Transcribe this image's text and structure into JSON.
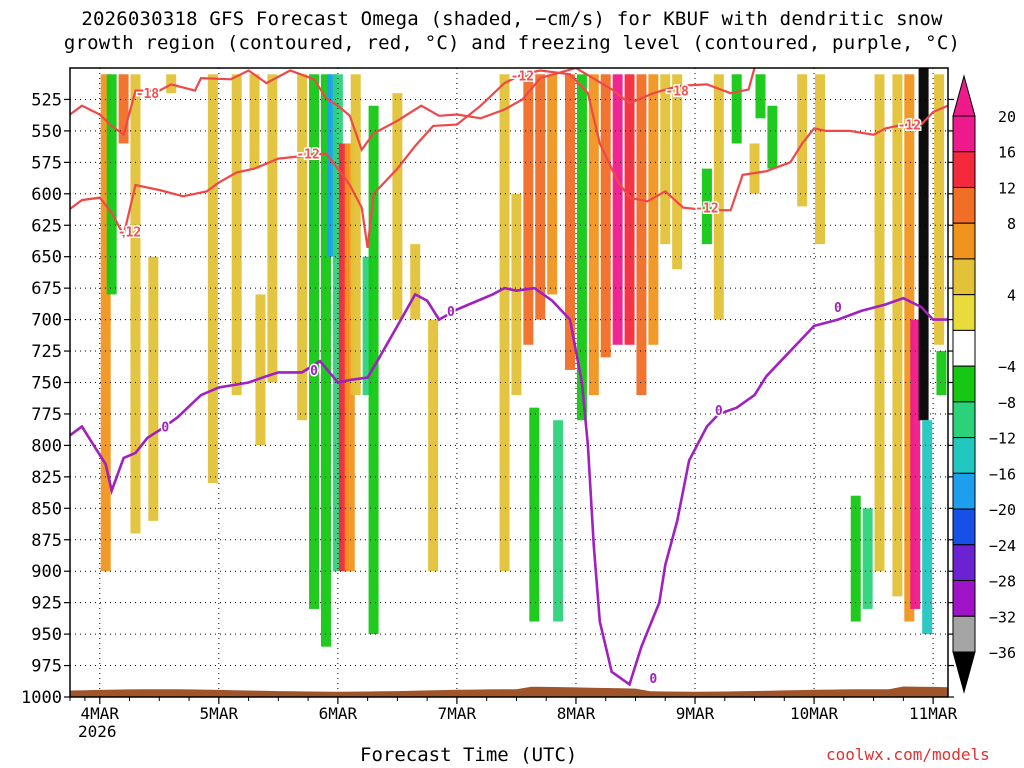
{
  "title": {
    "line1": "2026030318 GFS Forecast Omega (shaded, −cm/s) for KBUF with dendritic snow",
    "line2": "growth region (contoured, red, °C) and freezing level (contoured, purple, °C)"
  },
  "xlabel": "Forecast Time (UTC)",
  "year_label": "2026",
  "credit": "coolwx.com/models",
  "chart_data": {
    "type": "heatmap",
    "x": {
      "unit": "UTC day",
      "tick_labels": [
        "4MAR",
        "5MAR",
        "6MAR",
        "7MAR",
        "8MAR",
        "9MAR",
        "10MAR",
        "11MAR"
      ],
      "range_days": [
        3.75,
        11.125
      ]
    },
    "y": {
      "unit": "hPa",
      "tick_labels": [
        "525",
        "550",
        "575",
        "600",
        "625",
        "650",
        "675",
        "700",
        "725",
        "750",
        "775",
        "800",
        "825",
        "850",
        "875",
        "900",
        "925",
        "950",
        "975",
        "1000"
      ],
      "range": [
        500,
        1000
      ],
      "inverted": true,
      "grid": true
    },
    "colorbar": {
      "labels": [
        "20",
        "16",
        "12",
        "8",
        "4",
        "−4",
        "−8",
        "−12",
        "−16",
        "−20",
        "−24",
        "−28",
        "−32",
        "−36"
      ],
      "bins": [
        {
          "min": 20,
          "max": 24,
          "color": "#ee1a8c"
        },
        {
          "min": 16,
          "max": 20,
          "color": "#f42a3c"
        },
        {
          "min": 12,
          "max": 16,
          "color": "#f06e26"
        },
        {
          "min": 8,
          "max": 12,
          "color": "#f0941e"
        },
        {
          "min": 4,
          "max": 8,
          "color": "#e3c238"
        },
        {
          "min": 0,
          "max": 4,
          "color": "#e8dc3c"
        },
        {
          "min": -4,
          "max": 4,
          "color": "#ffffff"
        },
        {
          "min": -8,
          "max": -4,
          "color": "#14c814"
        },
        {
          "min": -12,
          "max": -8,
          "color": "#2cd27a"
        },
        {
          "min": -16,
          "max": -12,
          "color": "#20c8c0"
        },
        {
          "min": -20,
          "max": -16,
          "color": "#1ca0ee"
        },
        {
          "min": -24,
          "max": -20,
          "color": "#1650e6"
        },
        {
          "min": -28,
          "max": -24,
          "color": "#6a22d2"
        },
        {
          "min": -32,
          "max": -28,
          "color": "#a014c8"
        },
        {
          "min": -36,
          "max": -32,
          "color": "#a5a5a5"
        }
      ],
      "top_triangle_color": "#ee1a8c",
      "bottom_triangle_color": "#000000"
    },
    "omega_shading": [
      {
        "day": 4.05,
        "pmin": 505,
        "pmax": 900,
        "value": 10
      },
      {
        "day": 4.1,
        "pmin": 505,
        "pmax": 680,
        "value": -6
      },
      {
        "day": 4.2,
        "pmin": 505,
        "pmax": 560,
        "value": 14
      },
      {
        "day": 4.3,
        "pmin": 505,
        "pmax": 870,
        "value": 6
      },
      {
        "day": 4.45,
        "pmin": 650,
        "pmax": 860,
        "value": 5
      },
      {
        "day": 4.6,
        "pmin": 505,
        "pmax": 520,
        "value": 6
      },
      {
        "day": 4.95,
        "pmin": 505,
        "pmax": 830,
        "value": 6
      },
      {
        "day": 5.15,
        "pmin": 505,
        "pmax": 760,
        "value": 5
      },
      {
        "day": 5.3,
        "pmin": 505,
        "pmax": 580,
        "value": 5
      },
      {
        "day": 5.35,
        "pmin": 680,
        "pmax": 800,
        "value": 6
      },
      {
        "day": 5.45,
        "pmin": 505,
        "pmax": 750,
        "value": 6
      },
      {
        "day": 5.7,
        "pmin": 505,
        "pmax": 780,
        "value": 6
      },
      {
        "day": 5.8,
        "pmin": 505,
        "pmax": 930,
        "value": -6
      },
      {
        "day": 5.9,
        "pmin": 505,
        "pmax": 960,
        "value": -6
      },
      {
        "day": 5.95,
        "pmin": 505,
        "pmax": 650,
        "value": -20
      },
      {
        "day": 6.0,
        "pmin": 505,
        "pmax": 900,
        "value": -12
      },
      {
        "day": 6.05,
        "pmin": 560,
        "pmax": 900,
        "value": 18
      },
      {
        "day": 6.1,
        "pmin": 560,
        "pmax": 900,
        "value": 8
      },
      {
        "day": 6.15,
        "pmin": 505,
        "pmax": 760,
        "value": 6
      },
      {
        "day": 6.25,
        "pmin": 650,
        "pmax": 760,
        "value": -10
      },
      {
        "day": 6.3,
        "pmin": 530,
        "pmax": 950,
        "value": -6
      },
      {
        "day": 6.5,
        "pmin": 520,
        "pmax": 700,
        "value": 5
      },
      {
        "day": 6.65,
        "pmin": 640,
        "pmax": 700,
        "value": 5
      },
      {
        "day": 6.8,
        "pmin": 700,
        "pmax": 900,
        "value": 5
      },
      {
        "day": 7.4,
        "pmin": 505,
        "pmax": 900,
        "value": 6
      },
      {
        "day": 7.5,
        "pmin": 600,
        "pmax": 760,
        "value": 6
      },
      {
        "day": 7.6,
        "pmin": 505,
        "pmax": 720,
        "value": 14
      },
      {
        "day": 7.65,
        "pmin": 770,
        "pmax": 940,
        "value": -8
      },
      {
        "day": 7.7,
        "pmin": 505,
        "pmax": 700,
        "value": 12
      },
      {
        "day": 7.8,
        "pmin": 505,
        "pmax": 680,
        "value": 10
      },
      {
        "day": 7.85,
        "pmin": 780,
        "pmax": 940,
        "value": -12
      },
      {
        "day": 7.95,
        "pmin": 505,
        "pmax": 740,
        "value": 12
      },
      {
        "day": 8.05,
        "pmin": 505,
        "pmax": 780,
        "value": -8
      },
      {
        "day": 8.15,
        "pmin": 505,
        "pmax": 760,
        "value": 8
      },
      {
        "day": 8.25,
        "pmin": 505,
        "pmax": 730,
        "value": 14
      },
      {
        "day": 8.35,
        "pmin": 505,
        "pmax": 720,
        "value": 20
      },
      {
        "day": 8.45,
        "pmin": 505,
        "pmax": 720,
        "value": 18
      },
      {
        "day": 8.55,
        "pmin": 505,
        "pmax": 760,
        "value": 12
      },
      {
        "day": 8.65,
        "pmin": 505,
        "pmax": 720,
        "value": 8
      },
      {
        "day": 8.75,
        "pmin": 505,
        "pmax": 640,
        "value": 6
      },
      {
        "day": 8.85,
        "pmin": 505,
        "pmax": 660,
        "value": 5
      },
      {
        "day": 9.1,
        "pmin": 580,
        "pmax": 640,
        "value": -8
      },
      {
        "day": 9.2,
        "pmin": 505,
        "pmax": 700,
        "value": 5
      },
      {
        "day": 9.35,
        "pmin": 505,
        "pmax": 560,
        "value": -8
      },
      {
        "day": 9.5,
        "pmin": 560,
        "pmax": 600,
        "value": 5
      },
      {
        "day": 9.55,
        "pmin": 505,
        "pmax": 540,
        "value": -8
      },
      {
        "day": 9.65,
        "pmin": 530,
        "pmax": 580,
        "value": -8
      },
      {
        "day": 9.9,
        "pmin": 505,
        "pmax": 610,
        "value": 5
      },
      {
        "day": 10.05,
        "pmin": 505,
        "pmax": 640,
        "value": 5
      },
      {
        "day": 10.35,
        "pmin": 840,
        "pmax": 940,
        "value": -8
      },
      {
        "day": 10.45,
        "pmin": 850,
        "pmax": 930,
        "value": -12
      },
      {
        "day": 10.55,
        "pmin": 505,
        "pmax": 900,
        "value": 5
      },
      {
        "day": 10.7,
        "pmin": 505,
        "pmax": 920,
        "value": 6
      },
      {
        "day": 10.8,
        "pmin": 505,
        "pmax": 940,
        "value": 10
      },
      {
        "day": 10.85,
        "pmin": 700,
        "pmax": 930,
        "value": 20
      },
      {
        "day": 10.92,
        "pmin": 500,
        "pmax": 780,
        "value": -40
      },
      {
        "day": 10.95,
        "pmin": 780,
        "pmax": 950,
        "value": -14
      },
      {
        "day": 11.05,
        "pmin": 505,
        "pmax": 720,
        "value": 6
      },
      {
        "day": 11.07,
        "pmin": 725,
        "pmax": 760,
        "value": -8
      }
    ],
    "dgz_contours_red": [
      {
        "label": "-18",
        "points": [
          [
            3.75,
            537
          ],
          [
            3.85,
            530
          ],
          [
            4.0,
            537
          ],
          [
            4.1,
            546
          ],
          [
            4.2,
            553
          ],
          [
            4.3,
            518
          ],
          [
            4.5,
            518
          ],
          [
            4.6,
            513
          ],
          [
            4.8,
            518
          ],
          [
            4.85,
            508
          ],
          [
            5.1,
            509
          ],
          [
            5.25,
            502
          ],
          [
            5.4,
            512
          ],
          [
            5.6,
            502
          ],
          [
            5.8,
            509
          ],
          [
            5.9,
            524
          ],
          [
            6.0,
            530
          ],
          [
            6.1,
            538
          ],
          [
            6.2,
            565
          ],
          [
            6.3,
            552
          ],
          [
            6.5,
            542
          ],
          [
            6.7,
            530
          ],
          [
            6.85,
            538
          ],
          [
            7.0,
            537
          ],
          [
            7.2,
            540
          ],
          [
            7.4,
            533
          ],
          [
            7.55,
            525
          ],
          [
            7.7,
            508
          ],
          [
            8.0,
            500
          ],
          [
            8.3,
            517
          ],
          [
            8.45,
            528
          ],
          [
            8.65,
            520
          ],
          [
            8.8,
            516
          ],
          [
            8.9,
            514
          ],
          [
            9.1,
            513
          ],
          [
            9.3,
            520
          ],
          [
            9.45,
            517
          ],
          [
            9.5,
            500
          ]
        ]
      },
      {
        "label": "-12",
        "points": [
          [
            3.75,
            612
          ],
          [
            3.85,
            605
          ],
          [
            4.0,
            603
          ],
          [
            4.1,
            615
          ],
          [
            4.2,
            633
          ],
          [
            4.3,
            593
          ],
          [
            4.5,
            597
          ],
          [
            4.7,
            602
          ],
          [
            4.9,
            598
          ],
          [
            5.0,
            591
          ],
          [
            5.15,
            583
          ],
          [
            5.3,
            580
          ],
          [
            5.5,
            572
          ],
          [
            5.7,
            570
          ],
          [
            5.9,
            568
          ],
          [
            6.0,
            580
          ],
          [
            6.1,
            593
          ],
          [
            6.2,
            611
          ],
          [
            6.25,
            643
          ],
          [
            6.3,
            600
          ],
          [
            6.5,
            580
          ],
          [
            6.65,
            562
          ],
          [
            6.8,
            546
          ],
          [
            7.0,
            545
          ],
          [
            7.2,
            530
          ],
          [
            7.4,
            512
          ],
          [
            7.55,
            505
          ],
          [
            7.7,
            502
          ],
          [
            7.95,
            505
          ],
          [
            8.1,
            520
          ],
          [
            8.2,
            560
          ],
          [
            8.35,
            590
          ],
          [
            8.45,
            603
          ],
          [
            8.6,
            606
          ],
          [
            8.75,
            598
          ],
          [
            8.9,
            611
          ],
          [
            9.1,
            613
          ],
          [
            9.3,
            613
          ],
          [
            9.4,
            585
          ],
          [
            9.6,
            582
          ],
          [
            9.8,
            575
          ],
          [
            9.9,
            560
          ],
          [
            10.0,
            548
          ],
          [
            10.1,
            550
          ],
          [
            10.3,
            550
          ],
          [
            10.5,
            553
          ],
          [
            10.6,
            548
          ],
          [
            10.75,
            545
          ],
          [
            10.9,
            545
          ],
          [
            11.0,
            535
          ],
          [
            11.125,
            530
          ]
        ]
      }
    ],
    "freezing_level_contour_purple": {
      "label": "0",
      "points": [
        [
          3.75,
          792
        ],
        [
          3.85,
          785
        ],
        [
          3.95,
          800
        ],
        [
          4.05,
          815
        ],
        [
          4.1,
          836
        ],
        [
          4.2,
          810
        ],
        [
          4.3,
          806
        ],
        [
          4.4,
          794
        ],
        [
          4.5,
          788
        ],
        [
          4.65,
          778
        ],
        [
          4.85,
          760
        ],
        [
          5.0,
          754
        ],
        [
          5.25,
          750
        ],
        [
          5.4,
          745
        ],
        [
          5.5,
          742
        ],
        [
          5.7,
          742
        ],
        [
          5.85,
          733
        ],
        [
          6.0,
          750
        ],
        [
          6.1,
          748
        ],
        [
          6.25,
          746
        ],
        [
          6.35,
          730
        ],
        [
          6.5,
          705
        ],
        [
          6.65,
          680
        ],
        [
          6.75,
          685
        ],
        [
          6.85,
          700
        ],
        [
          7.0,
          692
        ],
        [
          7.1,
          688
        ],
        [
          7.3,
          680
        ],
        [
          7.4,
          675
        ],
        [
          7.5,
          677
        ],
        [
          7.65,
          675
        ],
        [
          7.8,
          685
        ],
        [
          7.95,
          700
        ],
        [
          8.05,
          750
        ],
        [
          8.1,
          800
        ],
        [
          8.15,
          880
        ],
        [
          8.2,
          940
        ],
        [
          8.3,
          980
        ],
        [
          8.45,
          990
        ],
        [
          8.55,
          960
        ],
        [
          8.7,
          925
        ],
        [
          8.75,
          895
        ],
        [
          8.85,
          860
        ],
        [
          8.95,
          812
        ],
        [
          9.1,
          785
        ],
        [
          9.2,
          775
        ],
        [
          9.35,
          770
        ],
        [
          9.5,
          760
        ],
        [
          9.6,
          745
        ],
        [
          9.75,
          730
        ],
        [
          9.9,
          715
        ],
        [
          10.0,
          705
        ],
        [
          10.2,
          700
        ],
        [
          10.4,
          693
        ],
        [
          10.6,
          688
        ],
        [
          10.75,
          683
        ],
        [
          10.9,
          690
        ],
        [
          11.0,
          700
        ],
        [
          11.125,
          700
        ]
      ]
    },
    "surface_color": "#a0542a",
    "annotations": [
      {
        "text": "-18",
        "day": 4.4,
        "p": 520,
        "color": "#f05050"
      },
      {
        "text": "-12",
        "day": 4.25,
        "p": 630,
        "color": "#f05050"
      },
      {
        "text": "-12",
        "day": 5.75,
        "p": 568,
        "color": "#f05050"
      },
      {
        "text": "-12",
        "day": 7.55,
        "p": 506,
        "color": "#f05050"
      },
      {
        "text": "-18",
        "day": 8.85,
        "p": 518,
        "color": "#f05050"
      },
      {
        "text": "-12",
        "day": 9.1,
        "p": 611,
        "color": "#f05050"
      },
      {
        "text": "-12",
        "day": 10.8,
        "p": 545,
        "color": "#f05050"
      },
      {
        "text": "0",
        "day": 4.55,
        "p": 785,
        "color": "#a020c0"
      },
      {
        "text": "0",
        "day": 5.8,
        "p": 740,
        "color": "#a020c0"
      },
      {
        "text": "0",
        "day": 6.95,
        "p": 693,
        "color": "#a020c0"
      },
      {
        "text": "0",
        "day": 9.2,
        "p": 772,
        "color": "#a020c0"
      },
      {
        "text": "0",
        "day": 10.2,
        "p": 690,
        "color": "#a020c0"
      },
      {
        "text": "0",
        "day": 8.65,
        "p": 985,
        "color": "#a020c0"
      }
    ]
  }
}
